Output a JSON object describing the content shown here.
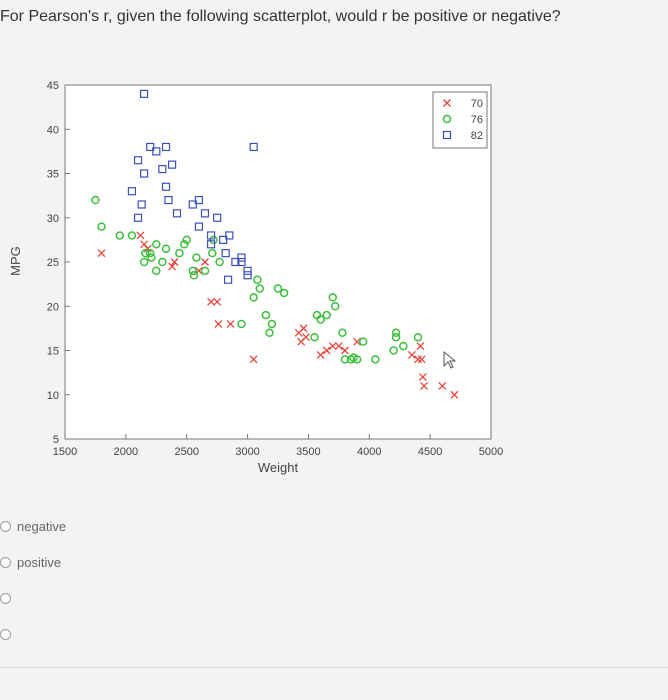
{
  "question": {
    "text": "For Pearson's r, given the following scatterplot, would r be positive or negative?"
  },
  "answers": [
    {
      "label": "negative"
    },
    {
      "label": "positive"
    },
    {
      "label": ""
    },
    {
      "label": ""
    }
  ],
  "chart_data": {
    "type": "scatter",
    "xlabel": "Weight",
    "ylabel": "MPG",
    "xlim": [
      1500,
      5000
    ],
    "ylim": [
      5,
      45
    ],
    "xticks": [
      "1500",
      "2000",
      "2500",
      "3000",
      "3500",
      "4000",
      "4500",
      "5000"
    ],
    "yticks": [
      "5",
      "10",
      "15",
      "20",
      "25",
      "30",
      "35",
      "40",
      "45"
    ],
    "legend_position": "top-right",
    "grid": false,
    "series": [
      {
        "name": "70",
        "marker": "x",
        "color": "#e8453c",
        "points": [
          [
            1800,
            26
          ],
          [
            2120,
            28
          ],
          [
            2150,
            27
          ],
          [
            2180,
            26.5
          ],
          [
            2380,
            24.5
          ],
          [
            2400,
            25
          ],
          [
            2600,
            24
          ],
          [
            2650,
            25
          ],
          [
            2700,
            20.5
          ],
          [
            2750,
            20.5
          ],
          [
            2760,
            18
          ],
          [
            2860,
            18
          ],
          [
            3050,
            14
          ],
          [
            3420,
            17
          ],
          [
            3440,
            16
          ],
          [
            3460,
            17.5
          ],
          [
            3480,
            16.5
          ],
          [
            3600,
            14.5
          ],
          [
            3650,
            15
          ],
          [
            3700,
            15.5
          ],
          [
            3750,
            15.5
          ],
          [
            3800,
            15
          ],
          [
            3900,
            16
          ],
          [
            4350,
            14.5
          ],
          [
            4400,
            14
          ],
          [
            4420,
            15.5
          ],
          [
            4430,
            14
          ],
          [
            4440,
            12
          ],
          [
            4450,
            11
          ],
          [
            4600,
            11
          ],
          [
            4700,
            10
          ]
        ]
      },
      {
        "name": "76",
        "marker": "o",
        "color": "#3bbf3b",
        "points": [
          [
            1750,
            32
          ],
          [
            1800,
            29
          ],
          [
            1950,
            28
          ],
          [
            2050,
            28
          ],
          [
            2150,
            25
          ],
          [
            2160,
            26
          ],
          [
            2200,
            26
          ],
          [
            2210,
            25.5
          ],
          [
            2250,
            24
          ],
          [
            2250,
            27
          ],
          [
            2300,
            25
          ],
          [
            2330,
            26.5
          ],
          [
            2440,
            26
          ],
          [
            2480,
            27
          ],
          [
            2500,
            27.5
          ],
          [
            2550,
            24
          ],
          [
            2560,
            23.5
          ],
          [
            2580,
            25.5
          ],
          [
            2650,
            24
          ],
          [
            2710,
            26
          ],
          [
            2720,
            27.5
          ],
          [
            2770,
            25
          ],
          [
            2950,
            18
          ],
          [
            3050,
            21
          ],
          [
            3080,
            23
          ],
          [
            3100,
            22
          ],
          [
            3150,
            19
          ],
          [
            3180,
            17
          ],
          [
            3200,
            18
          ],
          [
            3250,
            22
          ],
          [
            3300,
            21.5
          ],
          [
            3550,
            16.5
          ],
          [
            3570,
            19
          ],
          [
            3600,
            18.5
          ],
          [
            3650,
            19
          ],
          [
            3700,
            21
          ],
          [
            3720,
            20
          ],
          [
            3780,
            17
          ],
          [
            3800,
            14
          ],
          [
            3850,
            14
          ],
          [
            3870,
            14.2
          ],
          [
            3900,
            14
          ],
          [
            3950,
            16
          ],
          [
            4050,
            14
          ],
          [
            4200,
            15
          ],
          [
            4220,
            16.5
          ],
          [
            4220,
            17
          ],
          [
            4280,
            15.5
          ],
          [
            4400,
            16.5
          ]
        ]
      },
      {
        "name": "82",
        "marker": "square",
        "color": "#3b4fbf",
        "points": [
          [
            2050,
            33
          ],
          [
            2100,
            36.5
          ],
          [
            2150,
            35
          ],
          [
            2200,
            38
          ],
          [
            2250,
            37.5
          ],
          [
            2330,
            33.5
          ],
          [
            2350,
            32
          ],
          [
            2380,
            36
          ],
          [
            2420,
            30.5
          ],
          [
            2550,
            31.5
          ],
          [
            2600,
            32
          ],
          [
            2650,
            30.5
          ],
          [
            2700,
            28
          ],
          [
            2750,
            30
          ],
          [
            2800,
            27.5
          ],
          [
            2850,
            28
          ],
          [
            2900,
            25
          ],
          [
            2950,
            25.5
          ],
          [
            3000,
            23.5
          ],
          [
            2150,
            44
          ],
          [
            2100,
            30
          ],
          [
            2130,
            31.5
          ],
          [
            2330,
            38
          ],
          [
            2300,
            35.5
          ],
          [
            2600,
            29
          ],
          [
            2700,
            27
          ],
          [
            2820,
            26
          ],
          [
            2950,
            25
          ],
          [
            3000,
            24
          ],
          [
            3050,
            38
          ],
          [
            2840,
            23
          ]
        ]
      }
    ]
  }
}
